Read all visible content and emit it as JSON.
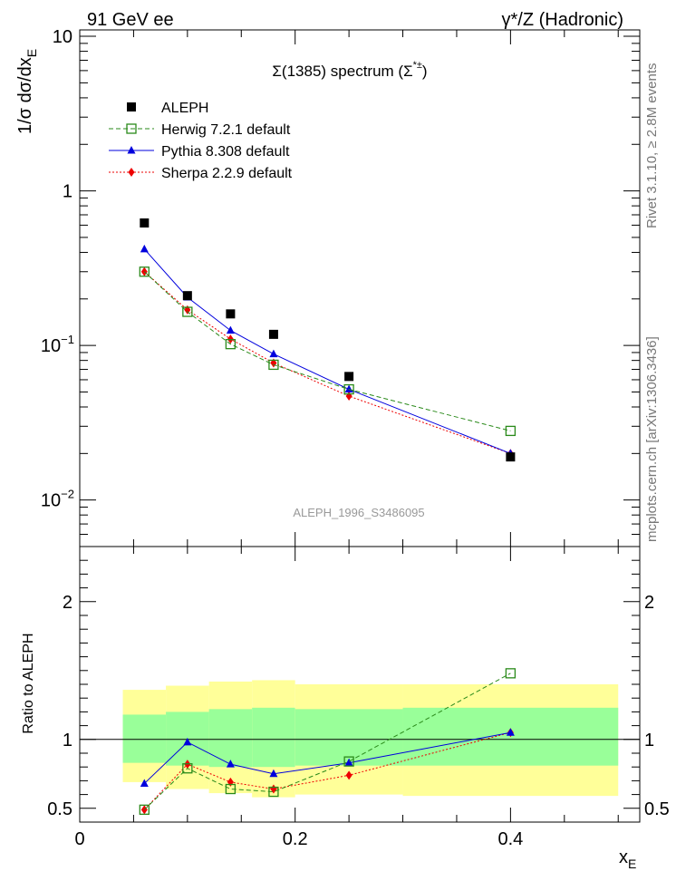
{
  "header": {
    "left": "91 GeV ee",
    "right": "γ*/Z (Hadronic)"
  },
  "side_labels": {
    "rivet": "Rivet 3.1.10, ≥ 2.8M events",
    "mcplots": "mcplots.cern.ch [arXiv:1306.3436]"
  },
  "colors": {
    "aleph": "#000000",
    "herwig": "#2a8a1a",
    "pythia": "#0000dd",
    "sherpa": "#ee0000",
    "band_inner": "#99ff99",
    "band_outer": "#ffff99"
  },
  "chart_data": [
    {
      "type": "scatter",
      "panel": "main",
      "title": "Σ(1385) spectrum (Σ*±)",
      "title_main": "Σ(1385) spectrum (Σ",
      "title_sup": "*±",
      "title_close": ")",
      "analysis_label": "ALEPH_1996_S3486095",
      "ylabel": "1/σ dσ/dx",
      "ylabel_sub": "E",
      "yscale": "log",
      "ylim": [
        0.005,
        11
      ],
      "xlim": [
        0,
        0.52
      ],
      "y_tick_labels": [
        {
          "value": 10,
          "label": "10"
        },
        {
          "value": 1,
          "label": "1"
        },
        {
          "value": 0.1,
          "label": "10",
          "exp": "−1"
        },
        {
          "value": 0.01,
          "label": "10",
          "exp": "−2"
        }
      ],
      "legend_position": "top-left",
      "x": [
        0.06,
        0.1,
        0.14,
        0.18,
        0.25,
        0.4
      ],
      "series": [
        {
          "name": "ALEPH",
          "key": "aleph",
          "marker": "square",
          "line": "none",
          "values": [
            0.62,
            0.21,
            0.16,
            0.118,
            0.063,
            0.019
          ]
        },
        {
          "name": "Herwig 7.2.1 default",
          "key": "herwig",
          "marker": "open-square",
          "line": "dashed",
          "values": [
            0.3,
            0.165,
            0.102,
            0.075,
            0.052,
            0.028
          ]
        },
        {
          "name": "Pythia 8.308 default",
          "key": "pythia",
          "marker": "triangle",
          "line": "solid",
          "values": [
            0.42,
            0.205,
            0.125,
            0.088,
            0.052,
            0.02
          ]
        },
        {
          "name": "Sherpa 2.2.9 default",
          "key": "sherpa",
          "marker": "diamond",
          "line": "dotted",
          "values": [
            0.3,
            0.17,
            0.11,
            0.077,
            0.047,
            0.02
          ]
        }
      ]
    },
    {
      "type": "line",
      "panel": "ratio",
      "ylabel": "Ratio to ALEPH",
      "xlabel": "x",
      "xlabel_sub": "E",
      "ylim": [
        0.4,
        2.4
      ],
      "xlim": [
        0,
        0.52
      ],
      "x_ticks": [
        0,
        0.2,
        0.4
      ],
      "x_tick_labels": [
        "0",
        "0.2",
        "0.4"
      ],
      "y_ticks": [
        0.5,
        1,
        2
      ],
      "y_tick_labels": [
        "0.5",
        "1",
        "2"
      ],
      "x": [
        0.06,
        0.1,
        0.14,
        0.18,
        0.25,
        0.4
      ],
      "series": [
        {
          "name": "Herwig 7.2.1 default",
          "key": "herwig",
          "values": [
            0.49,
            0.79,
            0.64,
            0.62,
            0.84,
            1.48
          ]
        },
        {
          "name": "Pythia 8.308 default",
          "key": "pythia",
          "values": [
            0.68,
            0.98,
            0.82,
            0.75,
            0.83,
            1.05
          ]
        },
        {
          "name": "Sherpa 2.2.9 default",
          "key": "sherpa",
          "values": [
            0.49,
            0.82,
            0.69,
            0.64,
            0.74,
            1.05
          ]
        }
      ],
      "bands": [
        {
          "x0": 0.04,
          "x1": 0.08,
          "inner": [
            0.83,
            1.18
          ],
          "outer": [
            0.69,
            1.36
          ]
        },
        {
          "x0": 0.08,
          "x1": 0.12,
          "inner": [
            0.81,
            1.2
          ],
          "outer": [
            0.64,
            1.39
          ]
        },
        {
          "x0": 0.12,
          "x1": 0.16,
          "inner": [
            0.8,
            1.22
          ],
          "outer": [
            0.61,
            1.42
          ]
        },
        {
          "x0": 0.16,
          "x1": 0.2,
          "inner": [
            0.8,
            1.23
          ],
          "outer": [
            0.58,
            1.43
          ]
        },
        {
          "x0": 0.2,
          "x1": 0.3,
          "inner": [
            0.81,
            1.22
          ],
          "outer": [
            0.6,
            1.4
          ]
        },
        {
          "x0": 0.3,
          "x1": 0.5,
          "inner": [
            0.81,
            1.23
          ],
          "outer": [
            0.59,
            1.4
          ]
        }
      ]
    }
  ]
}
